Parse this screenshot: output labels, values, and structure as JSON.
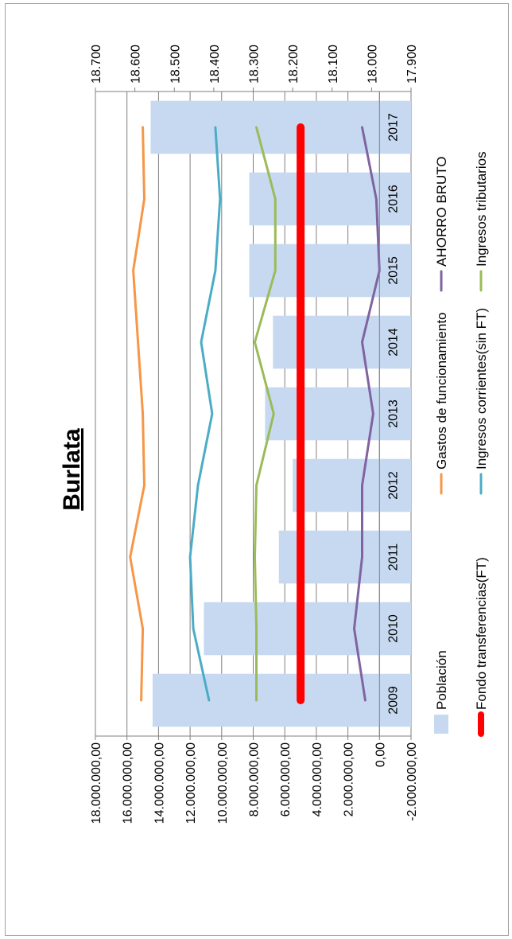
{
  "chart_data": {
    "type": "bar+line",
    "title": "Burlata",
    "categories": [
      "2009",
      "2010",
      "2011",
      "2012",
      "2013",
      "2014",
      "2015",
      "2016",
      "2017"
    ],
    "left_axis": {
      "ticks": [
        "18.000.000,00",
        "16.000.000,00",
        "14.000.000,00",
        "12.000.000,00",
        "10.000.000,00",
        "8.000.000,00",
        "6.000.000,00",
        "4.000.000,00",
        "2.000.000,00",
        "0,00",
        "-2.000.000,00"
      ],
      "range": [
        -2000000,
        18000000
      ]
    },
    "right_axis": {
      "ticks": [
        "18.700",
        "18.600",
        "18.500",
        "18.400",
        "18.300",
        "18.200",
        "18.100",
        "18.000",
        "17.900"
      ],
      "range": [
        17900,
        18700
      ]
    },
    "bar_series": {
      "name": "Población",
      "color": "#c6d9f1",
      "axis": "right",
      "values": [
        18555,
        18425,
        18235,
        18200,
        18270,
        18250,
        18310,
        18310,
        18560
      ]
    },
    "series": [
      {
        "name": "Gastos de funcionamiento",
        "color": "#f79646",
        "width": 3,
        "values": [
          15100000,
          15000000,
          15800000,
          14900000,
          15000000,
          15300000,
          15600000,
          14900000,
          15000000
        ]
      },
      {
        "name": "Ingresos tributarios",
        "color": "#9bbb59",
        "width": 3,
        "values": [
          7800000,
          7800000,
          7900000,
          7800000,
          6700000,
          7900000,
          6600000,
          6600000,
          7800000
        ]
      },
      {
        "name": "Ingresos corrientes(sin FT)",
        "color": "#4bacc6",
        "width": 3,
        "values": [
          10800000,
          11800000,
          12000000,
          11500000,
          10600000,
          11300000,
          10400000,
          10100000,
          10400000
        ]
      },
      {
        "name": "Fondo transferencias(FT)",
        "color": "#ff0000",
        "width": 10,
        "values": [
          5000000,
          5000000,
          5000000,
          5000000,
          5000000,
          5000000,
          5000000,
          5000000,
          5000000
        ]
      },
      {
        "name": "AHORRO BRUTO",
        "color": "#8064a2",
        "width": 3,
        "values": [
          900000,
          1600000,
          1100000,
          1100000,
          400000,
          1100000,
          0,
          200000,
          1100000
        ]
      }
    ],
    "legend": [
      {
        "name": "Población",
        "kind": "bar",
        "color": "#c6d9f1"
      },
      {
        "name": "Fondo transferencias(FT)",
        "kind": "line",
        "color": "#ff0000"
      },
      {
        "name": "Gastos de funcionamiento",
        "kind": "line",
        "color": "#f79646"
      },
      {
        "name": "Ingresos corrientes(sin FT)",
        "kind": "line",
        "color": "#4bacc6"
      },
      {
        "name": "AHORRO BRUTO",
        "kind": "line",
        "color": "#8064a2"
      },
      {
        "name": "Ingresos tributarios",
        "kind": "line",
        "color": "#9bbb59"
      }
    ],
    "grid": true,
    "legend_position": "bottom",
    "orientation": "rotated 90° counter-clockwise"
  }
}
